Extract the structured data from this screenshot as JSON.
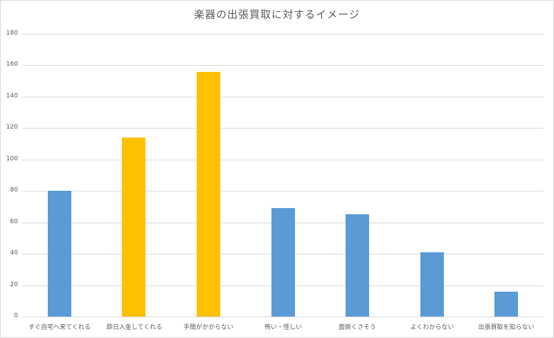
{
  "chart_data": {
    "type": "bar",
    "title": "楽器の出張買取に対するイメージ",
    "xlabel": "",
    "ylabel": "",
    "ylim": [
      0,
      180
    ],
    "yticks": [
      0,
      20,
      40,
      60,
      80,
      100,
      120,
      140,
      160,
      180
    ],
    "grid": true,
    "legend": "none",
    "categories": [
      "すぐ自宅へ来てくれる",
      "即日入金してくれる",
      "手間がかからない",
      "怖い・怪しい",
      "面倒くさそう",
      "よくわからない",
      "出張買取を知らない"
    ],
    "values": [
      80,
      114,
      156,
      69,
      65,
      41,
      16
    ],
    "bar_colors": [
      "#5b9bd5",
      "#ffc000",
      "#ffc000",
      "#5b9bd5",
      "#5b9bd5",
      "#5b9bd5",
      "#5b9bd5"
    ]
  },
  "colors": {
    "blue": "#5b9bd5",
    "orange": "#ffc000",
    "grid": "#d9d9d9",
    "text": "#595959"
  }
}
